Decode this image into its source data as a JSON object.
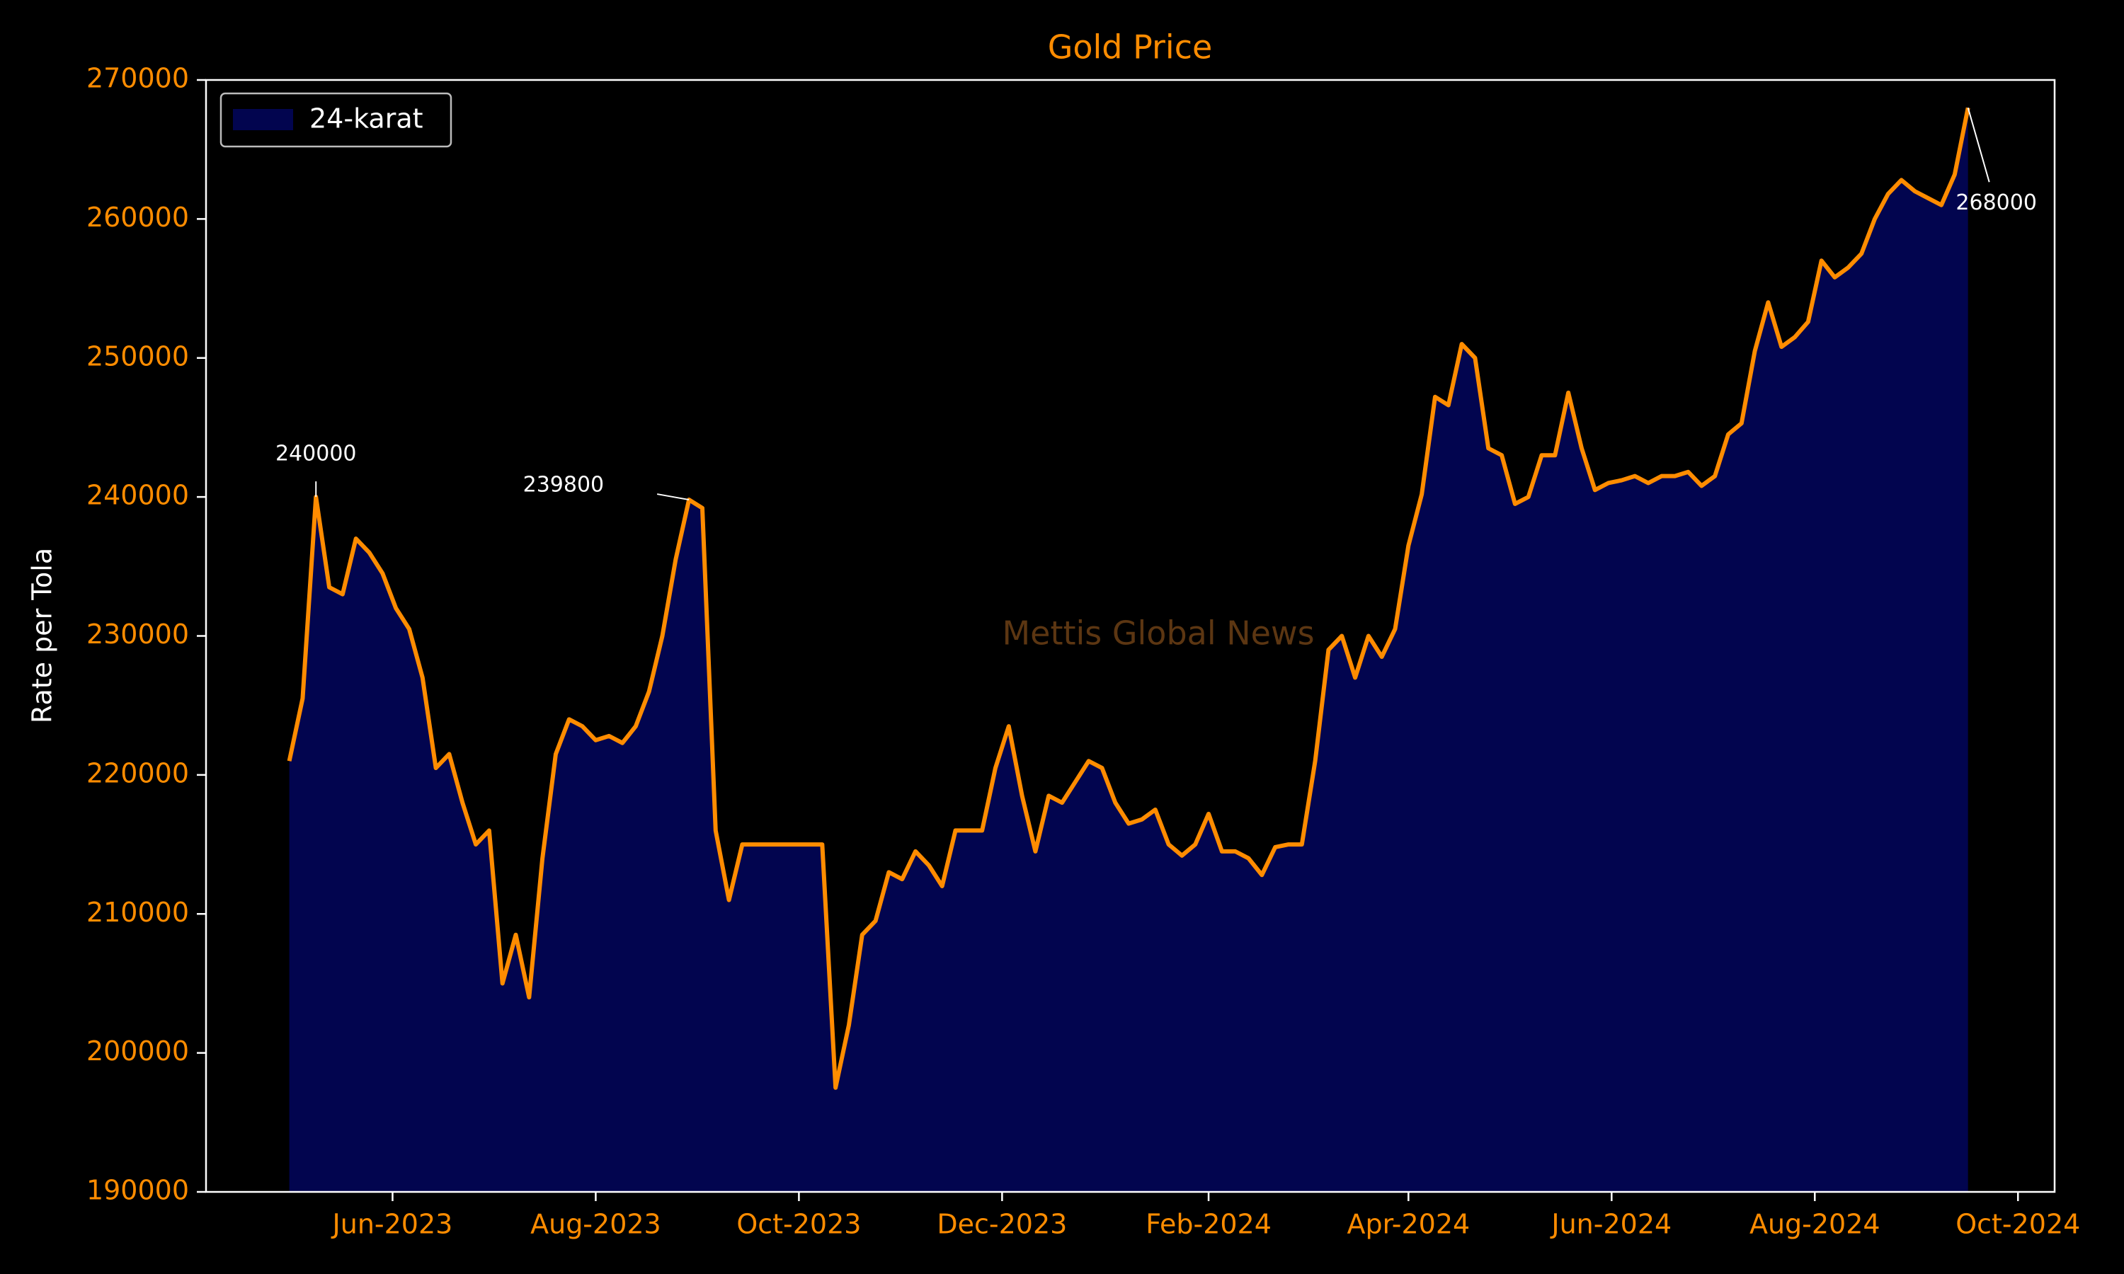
{
  "chart_data": {
    "type": "area",
    "title": "Gold Price",
    "ylabel": "Rate per Tola",
    "watermark": "Mettis Global News",
    "legend": "upper left",
    "grid": false,
    "x": [
      "2023-05-01",
      "2023-05-05",
      "2023-05-09",
      "2023-05-13",
      "2023-05-17",
      "2023-05-21",
      "2023-05-25",
      "2023-05-29",
      "2023-06-02",
      "2023-06-06",
      "2023-06-10",
      "2023-06-14",
      "2023-06-18",
      "2023-06-22",
      "2023-06-26",
      "2023-06-30",
      "2023-07-04",
      "2023-07-08",
      "2023-07-12",
      "2023-07-16",
      "2023-07-20",
      "2023-07-24",
      "2023-07-28",
      "2023-08-01",
      "2023-08-05",
      "2023-08-09",
      "2023-08-13",
      "2023-08-17",
      "2023-08-21",
      "2023-08-25",
      "2023-08-29",
      "2023-09-02",
      "2023-09-06",
      "2023-09-10",
      "2023-09-14",
      "2023-09-18",
      "2023-09-22",
      "2023-09-26",
      "2023-09-30",
      "2023-10-04",
      "2023-10-08",
      "2023-10-12",
      "2023-10-16",
      "2023-10-20",
      "2023-10-24",
      "2023-10-28",
      "2023-11-01",
      "2023-11-05",
      "2023-11-09",
      "2023-11-13",
      "2023-11-17",
      "2023-11-21",
      "2023-11-25",
      "2023-11-29",
      "2023-12-03",
      "2023-12-07",
      "2023-12-11",
      "2023-12-15",
      "2023-12-19",
      "2023-12-23",
      "2023-12-27",
      "2023-12-31",
      "2024-01-04",
      "2024-01-08",
      "2024-01-12",
      "2024-01-16",
      "2024-01-20",
      "2024-01-24",
      "2024-01-28",
      "2024-02-01",
      "2024-02-05",
      "2024-02-09",
      "2024-02-13",
      "2024-02-17",
      "2024-02-21",
      "2024-02-25",
      "2024-02-29",
      "2024-03-04",
      "2024-03-08",
      "2024-03-12",
      "2024-03-16",
      "2024-03-20",
      "2024-03-24",
      "2024-03-28",
      "2024-04-01",
      "2024-04-05",
      "2024-04-09",
      "2024-04-13",
      "2024-04-17",
      "2024-04-21",
      "2024-04-25",
      "2024-04-29",
      "2024-05-03",
      "2024-05-07",
      "2024-05-11",
      "2024-05-15",
      "2024-05-19",
      "2024-05-23",
      "2024-05-27",
      "2024-05-31",
      "2024-06-04",
      "2024-06-08",
      "2024-06-12",
      "2024-06-16",
      "2024-06-20",
      "2024-06-24",
      "2024-06-28",
      "2024-07-02",
      "2024-07-06",
      "2024-07-10",
      "2024-07-14",
      "2024-07-18",
      "2024-07-22",
      "2024-07-26",
      "2024-07-30",
      "2024-08-03",
      "2024-08-07",
      "2024-08-11",
      "2024-08-15",
      "2024-08-19",
      "2024-08-23",
      "2024-08-27",
      "2024-08-31",
      "2024-09-04",
      "2024-09-08",
      "2024-09-12",
      "2024-09-16"
    ],
    "series": [
      {
        "name": "24-karat",
        "color": "#ff8c00",
        "fill": "#02054f",
        "values": [
          221000,
          225500,
          240000,
          233500,
          233000,
          237000,
          236000,
          234500,
          232000,
          230500,
          227000,
          220500,
          221500,
          218000,
          215000,
          216000,
          205000,
          208500,
          204000,
          214000,
          221500,
          224000,
          223500,
          222500,
          222800,
          222300,
          223500,
          226000,
          230000,
          235500,
          239800,
          239200,
          216000,
          211000,
          215000,
          215000,
          215000,
          215000,
          215000,
          215000,
          215000,
          197500,
          202000,
          208500,
          209500,
          213000,
          212500,
          214500,
          213500,
          212000,
          216000,
          216000,
          216000,
          220500,
          223500,
          218500,
          214500,
          218500,
          218000,
          219500,
          221000,
          220500,
          218000,
          216500,
          216800,
          217500,
          215000,
          214200,
          215000,
          217200,
          214500,
          214500,
          214000,
          212800,
          214800,
          215000,
          215000,
          221000,
          229000,
          230000,
          227000,
          230000,
          228500,
          230500,
          236500,
          240200,
          247200,
          246600,
          251000,
          250000,
          243500,
          243000,
          239500,
          240000,
          243000,
          243000,
          247500,
          243500,
          240500,
          241000,
          241200,
          241500,
          241000,
          241500,
          241500,
          241800,
          240800,
          241500,
          244500,
          245300,
          250500,
          254000,
          250800,
          251500,
          252600,
          257000,
          255800,
          256500,
          257500,
          260000,
          261800,
          262800,
          262000,
          261500,
          261000,
          263200,
          268000
        ]
      }
    ],
    "annotations": [
      {
        "x": "2023-05-09",
        "y": 240000,
        "label": "240000"
      },
      {
        "x": "2023-08-29",
        "y": 239800,
        "label": "239800"
      },
      {
        "x": "2024-09-16",
        "y": 268000,
        "label": "268000"
      }
    ],
    "xlim": [
      "2023-04-06",
      "2024-10-12"
    ],
    "xticks": [
      {
        "value": "2023-06-01",
        "label": "Jun-2023"
      },
      {
        "value": "2023-08-01",
        "label": "Aug-2023"
      },
      {
        "value": "2023-10-01",
        "label": "Oct-2023"
      },
      {
        "value": "2023-12-01",
        "label": "Dec-2023"
      },
      {
        "value": "2024-02-01",
        "label": "Feb-2024"
      },
      {
        "value": "2024-04-01",
        "label": "Apr-2024"
      },
      {
        "value": "2024-06-01",
        "label": "Jun-2024"
      },
      {
        "value": "2024-08-01",
        "label": "Aug-2024"
      },
      {
        "value": "2024-10-01",
        "label": "Oct-2024"
      }
    ],
    "ylim": [
      190000,
      270000
    ],
    "yticks": [
      190000,
      200000,
      210000,
      220000,
      230000,
      240000,
      250000,
      260000,
      270000
    ]
  }
}
